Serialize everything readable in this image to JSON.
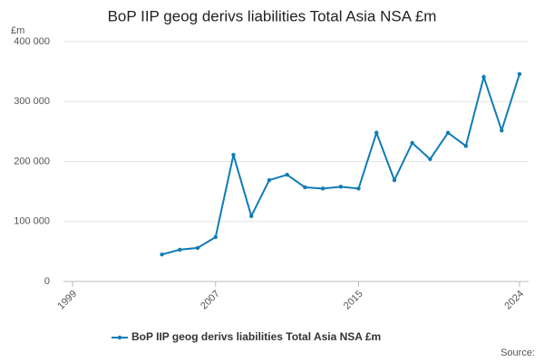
{
  "chart_data": {
    "type": "line",
    "title": "BoP IIP geog derivs liabilities Total Asia NSA £m",
    "ylabel": "£m",
    "source_label": "Source:",
    "x": [
      2004,
      2005,
      2006,
      2007,
      2008,
      2009,
      2010,
      2011,
      2012,
      2013,
      2014,
      2015,
      2016,
      2017,
      2018,
      2019,
      2020,
      2021,
      2022,
      2023,
      2024
    ],
    "series": [
      {
        "name": "BoP IIP geog derivs liabilities Total Asia NSA £m",
        "color": "#0f7cb6",
        "values": [
          45000,
          53000,
          56000,
          74000,
          211000,
          109000,
          169000,
          178000,
          157000,
          155000,
          158000,
          155000,
          248000,
          169000,
          231000,
          204000,
          248000,
          226000,
          341000,
          252000,
          346000
        ]
      }
    ],
    "xlim": [
      1999,
      2024
    ],
    "xticks": [
      1999,
      2007,
      2015,
      2024
    ],
    "ylim": [
      0,
      400000
    ],
    "yticks": [
      0,
      {
        "value": 100000,
        "label": "100 000"
      },
      {
        "value": 200000,
        "label": "200 000"
      },
      {
        "value": 300000,
        "label": "300 000"
      },
      {
        "value": 400000,
        "label": "400 000"
      }
    ],
    "grid": true
  }
}
